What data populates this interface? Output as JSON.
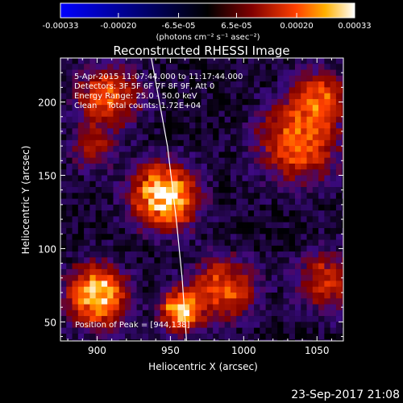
{
  "chart_data": {
    "type": "heatmap",
    "title": "Reconstructed RHESSI Image",
    "xlabel": "Heliocentric X (arcsec)",
    "ylabel": "Heliocentric Y (arcsec)",
    "xlim": [
      875,
      1068
    ],
    "ylim": [
      37,
      230
    ],
    "xticks": [
      900,
      950,
      1000,
      1050
    ],
    "yticks": [
      50,
      100,
      150,
      200
    ],
    "colorbar": {
      "range": [
        -0.00033,
        0.00033
      ],
      "tick_values": [
        -0.00033,
        -0.0002,
        -6.5e-05,
        6.5e-05,
        0.0002,
        0.00033
      ],
      "tick_labels": [
        "-0.00033",
        "-0.00020",
        "-6.5e-05",
        "6.5e-05",
        "0.00020",
        "0.00033"
      ],
      "units": "(photons cm⁻² s⁻¹ asec⁻²)"
    },
    "info_lines": [
      "5-Apr-2015 11:07:44.000 to 11:17:44.000",
      "Detectors: 3F 5F 6F 7F 8F 9F, Att 0",
      "Energy Range: 25.0 - 50.0 keV",
      "Clean    Total counts: 1.72E+04"
    ],
    "peak_text": "Position of Peak = [944,138]",
    "peak": {
      "x": 944,
      "y": 138,
      "value": 0.00033
    },
    "sources": [
      {
        "x": 944,
        "y": 138,
        "value": 0.00033,
        "sigma": 14
      },
      {
        "x": 898,
        "y": 70,
        "value": 0.0003,
        "sigma": 13
      },
      {
        "x": 955,
        "y": 60,
        "value": 0.00028,
        "sigma": 9
      },
      {
        "x": 985,
        "y": 75,
        "value": 0.00018,
        "sigma": 14
      },
      {
        "x": 1035,
        "y": 175,
        "value": 0.0002,
        "sigma": 18
      },
      {
        "x": 1050,
        "y": 205,
        "value": 0.00016,
        "sigma": 12
      },
      {
        "x": 905,
        "y": 205,
        "value": 0.00018,
        "sigma": 14
      },
      {
        "x": 1055,
        "y": 80,
        "value": 0.00014,
        "sigma": 14
      },
      {
        "x": 895,
        "y": 170,
        "value": 0.0001,
        "sigma": 10
      }
    ],
    "limb_curve": [
      [
        937,
        230
      ],
      [
        948,
        170
      ],
      [
        954,
        120
      ],
      [
        958,
        80
      ],
      [
        961,
        37
      ]
    ]
  },
  "timestamp": "23-Sep-2017 21:08"
}
